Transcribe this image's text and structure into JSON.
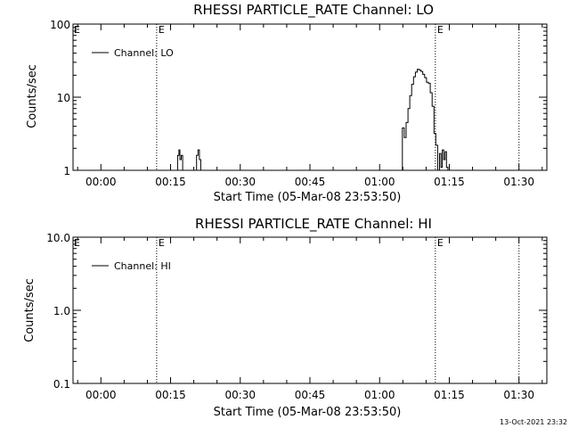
{
  "footer": {
    "timestamp": "13-Oct-2021 23:32"
  },
  "chart_data": [
    {
      "type": "line",
      "title": "RHESSI PARTICLE_RATE Channel: LO",
      "xlabel": "Start Time (05-Mar-08 23:53:50)",
      "ylabel": "Counts/sec",
      "yscale": "log",
      "xlim_minutes": [
        -6,
        96
      ],
      "ylim": [
        1,
        100
      ],
      "x_ticks": [
        {
          "t": 0,
          "label": "00:00"
        },
        {
          "t": 15,
          "label": "00:15"
        },
        {
          "t": 30,
          "label": "00:30"
        },
        {
          "t": 45,
          "label": "00:45"
        },
        {
          "t": 60,
          "label": "01:00"
        },
        {
          "t": 75,
          "label": "01:15"
        },
        {
          "t": 90,
          "label": "01:30"
        }
      ],
      "y_ticks": [
        {
          "v": 1,
          "label": "1"
        },
        {
          "v": 10,
          "label": "10"
        },
        {
          "v": 100,
          "label": "100"
        }
      ],
      "legend": {
        "label": "Channel: LO",
        "position": "top-left"
      },
      "flags": [
        {
          "t": 12,
          "label": "E"
        },
        {
          "t": 72,
          "label": "E"
        },
        {
          "t": 90,
          "label": ""
        }
      ],
      "series": [
        {
          "name": "Channel: LO",
          "x": [
            16.2,
            16.5,
            16.8,
            17.0,
            17.3,
            17.6,
            20.3,
            20.6,
            20.9,
            21.2,
            21.5,
            64.5,
            64.9,
            65.3,
            65.7,
            66.1,
            66.5,
            66.9,
            67.3,
            67.7,
            68.1,
            68.5,
            68.9,
            69.3,
            69.7,
            70.1,
            70.5,
            70.9,
            71.3,
            71.7,
            72.1,
            72.5,
            72.9,
            73.2,
            73.5,
            73.8,
            74.1,
            74.4,
            74.7
          ],
          "y": [
            1,
            1.6,
            1.9,
            1.4,
            1.6,
            1,
            1,
            1.6,
            1.9,
            1.4,
            1,
            1,
            3.8,
            2.8,
            4.5,
            7,
            10.5,
            15,
            19,
            22,
            24,
            23.5,
            22.5,
            20.5,
            18.5,
            16,
            15.5,
            11.5,
            7.5,
            3.2,
            2.2,
            1,
            1.7,
            1.1,
            1.9,
            1.4,
            1.8,
            1.1,
            1
          ]
        }
      ]
    },
    {
      "type": "line",
      "title": "RHESSI PARTICLE_RATE Channel: HI",
      "xlabel": "Start Time (05-Mar-08 23:53:50)",
      "ylabel": "Counts/sec",
      "yscale": "log",
      "xlim_minutes": [
        -6,
        96
      ],
      "ylim": [
        0.1,
        10
      ],
      "x_ticks": [
        {
          "t": 0,
          "label": "00:00"
        },
        {
          "t": 15,
          "label": "00:15"
        },
        {
          "t": 30,
          "label": "00:30"
        },
        {
          "t": 45,
          "label": "00:45"
        },
        {
          "t": 60,
          "label": "01:00"
        },
        {
          "t": 75,
          "label": "01:15"
        },
        {
          "t": 90,
          "label": "01:30"
        }
      ],
      "y_ticks": [
        {
          "v": 0.1,
          "label": "0.1"
        },
        {
          "v": 1,
          "label": "1.0"
        },
        {
          "v": 10,
          "label": "10.0"
        }
      ],
      "legend": {
        "label": "Channel: HI",
        "position": "top-left"
      },
      "flags": [
        {
          "t": 12,
          "label": "E"
        },
        {
          "t": 72,
          "label": "E"
        },
        {
          "t": 90,
          "label": ""
        }
      ],
      "series": [
        {
          "name": "Channel: HI",
          "x": [],
          "y": []
        }
      ]
    }
  ]
}
